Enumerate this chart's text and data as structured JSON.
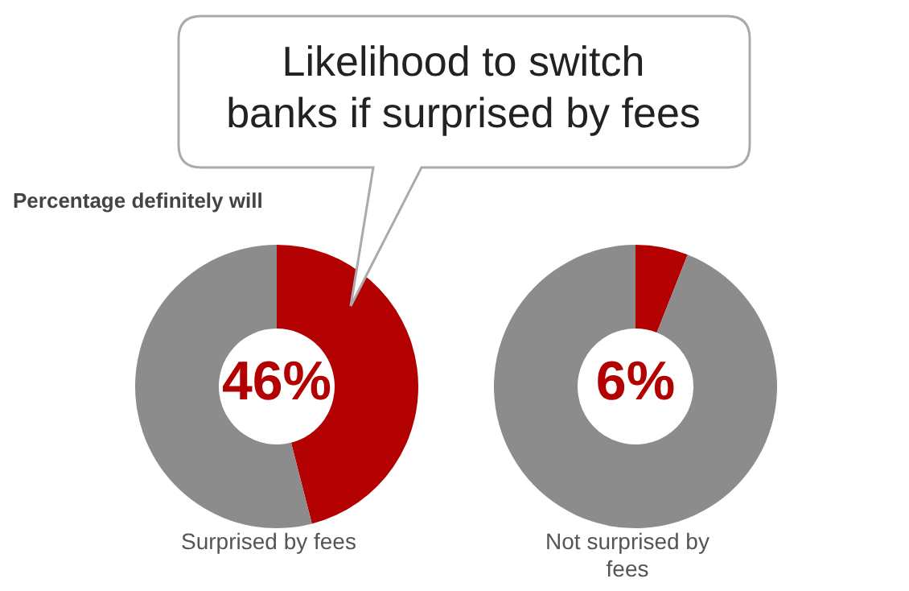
{
  "chart_data": [
    {
      "type": "donut",
      "title": "Likelihood to switch banks if surprised by fees",
      "subtitle": "Percentage definitely will",
      "xlabel": "Surprised by fees",
      "categories": [
        null,
        null
      ],
      "values": [
        46,
        54
      ],
      "colors": [
        "#b30000",
        "#8c8c8c"
      ],
      "annotations": [
        "46%"
      ]
    },
    {
      "type": "donut",
      "xlabel": "Not surprised by fees",
      "categories": [
        null,
        null
      ],
      "values": [
        6,
        94
      ],
      "colors": [
        "#b30000",
        "#8c8c8c"
      ],
      "annotations": [
        "6%"
      ]
    }
  ]
}
